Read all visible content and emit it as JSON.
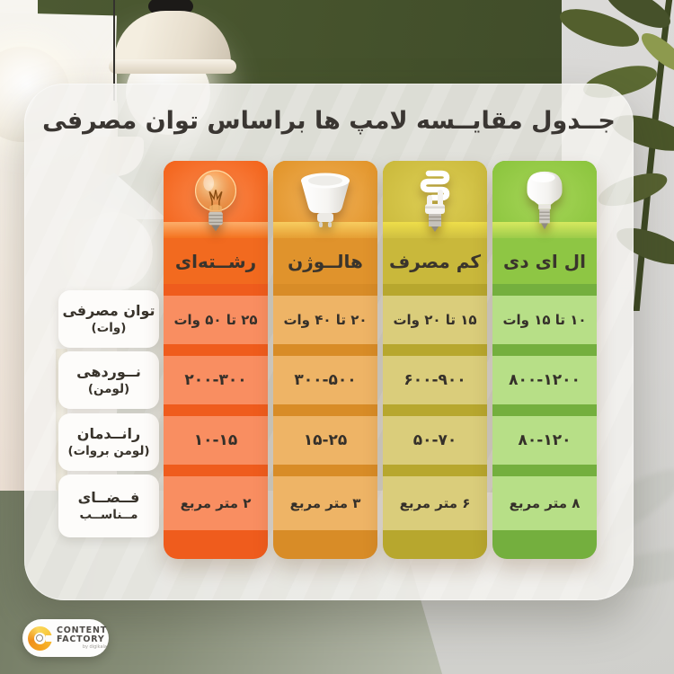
{
  "title": "جــدول مقایــسه لامپ ها براساس توان مصرفی",
  "table": {
    "row_headers": [
      {
        "id": "power",
        "line1": "توان مصرفی",
        "line2": "(وات)"
      },
      {
        "id": "lumen",
        "line1": "نــوردهی",
        "line2": "(لومن)"
      },
      {
        "id": "efficiency",
        "line1": "رانــدمان",
        "line2": "(لومن بروات)"
      },
      {
        "id": "space",
        "line1": "فــضــای",
        "line2": "مــناســب"
      }
    ],
    "columns": [
      {
        "id": "filament",
        "name": "رشــته‌ای",
        "icon": "incandescent-bulb",
        "values": [
          "۲۵ تا ۵۰ وات",
          "۲۰۰-۳۰۰",
          "۱۰-۱۵",
          "۲ متر مربع"
        ],
        "colors": {
          "area": "#f3651d",
          "glow": "#fb8a4e",
          "strip_top": "#fcae6a",
          "strip_bottom": "#f4721f",
          "label_bg": "#f26a1f",
          "cell": "#f98e61",
          "base": "#ef5c1d"
        }
      },
      {
        "id": "halogen",
        "name": "هالــوژن",
        "icon": "halogen-bulb",
        "values": [
          "۲۰ تا ۴۰ وات",
          "۳۰۰-۵۰۰",
          "۱۵-۲۵",
          "۳ متر مربع"
        ],
        "colors": {
          "area": "#e2952b",
          "glow": "#f0b057",
          "strip_top": "#f8cd60",
          "strip_bottom": "#e69e33",
          "label_bg": "#e0932c",
          "cell": "#eeb466",
          "base": "#d88c27"
        }
      },
      {
        "id": "cfl",
        "name": "کم مصرف",
        "icon": "cfl-bulb",
        "values": [
          "۱۵ تا ۲۰ وات",
          "۶۰۰-۹۰۰",
          "۵۰-۷۰",
          "۶ متر مربع"
        ],
        "colors": {
          "area": "#cbba3d",
          "glow": "#ddce54",
          "strip_top": "#eede4a",
          "strip_bottom": "#cfbf41",
          "label_bg": "#c9b83b",
          "cell": "#dacd7b",
          "base": "#b7a72e"
        }
      },
      {
        "id": "led",
        "name": "ال ای دی",
        "icon": "led-bulb",
        "values": [
          "۱۰ تا ۱۵ وات",
          "۸۰۰-۱۲۰۰",
          "۸۰-۱۲۰",
          "۸ متر مربع"
        ],
        "colors": {
          "area": "#8cc53e",
          "glow": "#a6d558",
          "strip_top": "#d7e95f",
          "strip_bottom": "#9ccb4a",
          "label_bg": "#8ec644",
          "cell": "#b7df87",
          "base": "#74af3e"
        }
      }
    ]
  },
  "logo": {
    "line1": "CONTENT",
    "line2": "FACTORY",
    "tagline": "by digikala"
  },
  "accent_colors": {
    "title_text": "#3a3632",
    "value_text": "#35302a",
    "card_bg": "#f1f0ed"
  }
}
